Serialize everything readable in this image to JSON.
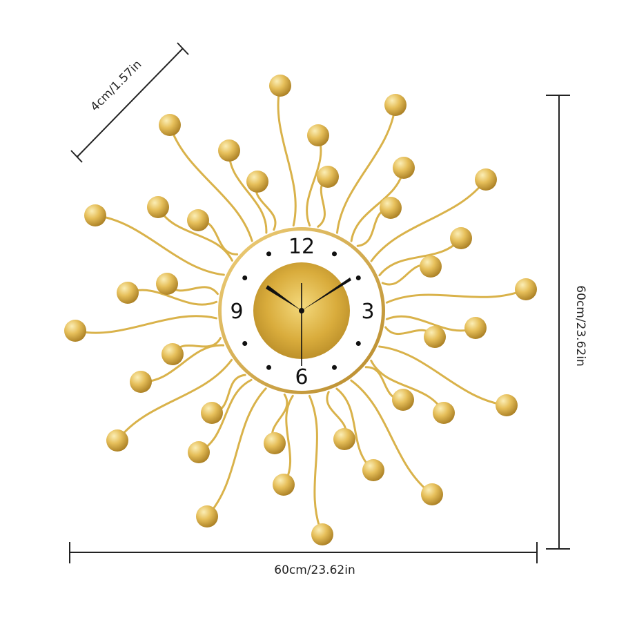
{
  "product": {
    "dimensions": {
      "depth_label": "4cm/1.57in",
      "height_label": "60cm/23.62in",
      "width_label": "60cm/23.62in"
    },
    "clock": {
      "numerals": {
        "n12": "12",
        "n3": "3",
        "n6": "6",
        "n9": "9"
      },
      "time_shown": {
        "hour_hand_points_toward": "10",
        "minute_hand_points_toward": "2"
      }
    },
    "colors": {
      "gold": "#d9b24a",
      "gold_light": "#f3dc8b",
      "gold_dark": "#b38a2a",
      "dial_face": "#ffffff",
      "hands": "#111111",
      "dimension_lines": "#222222"
    }
  }
}
